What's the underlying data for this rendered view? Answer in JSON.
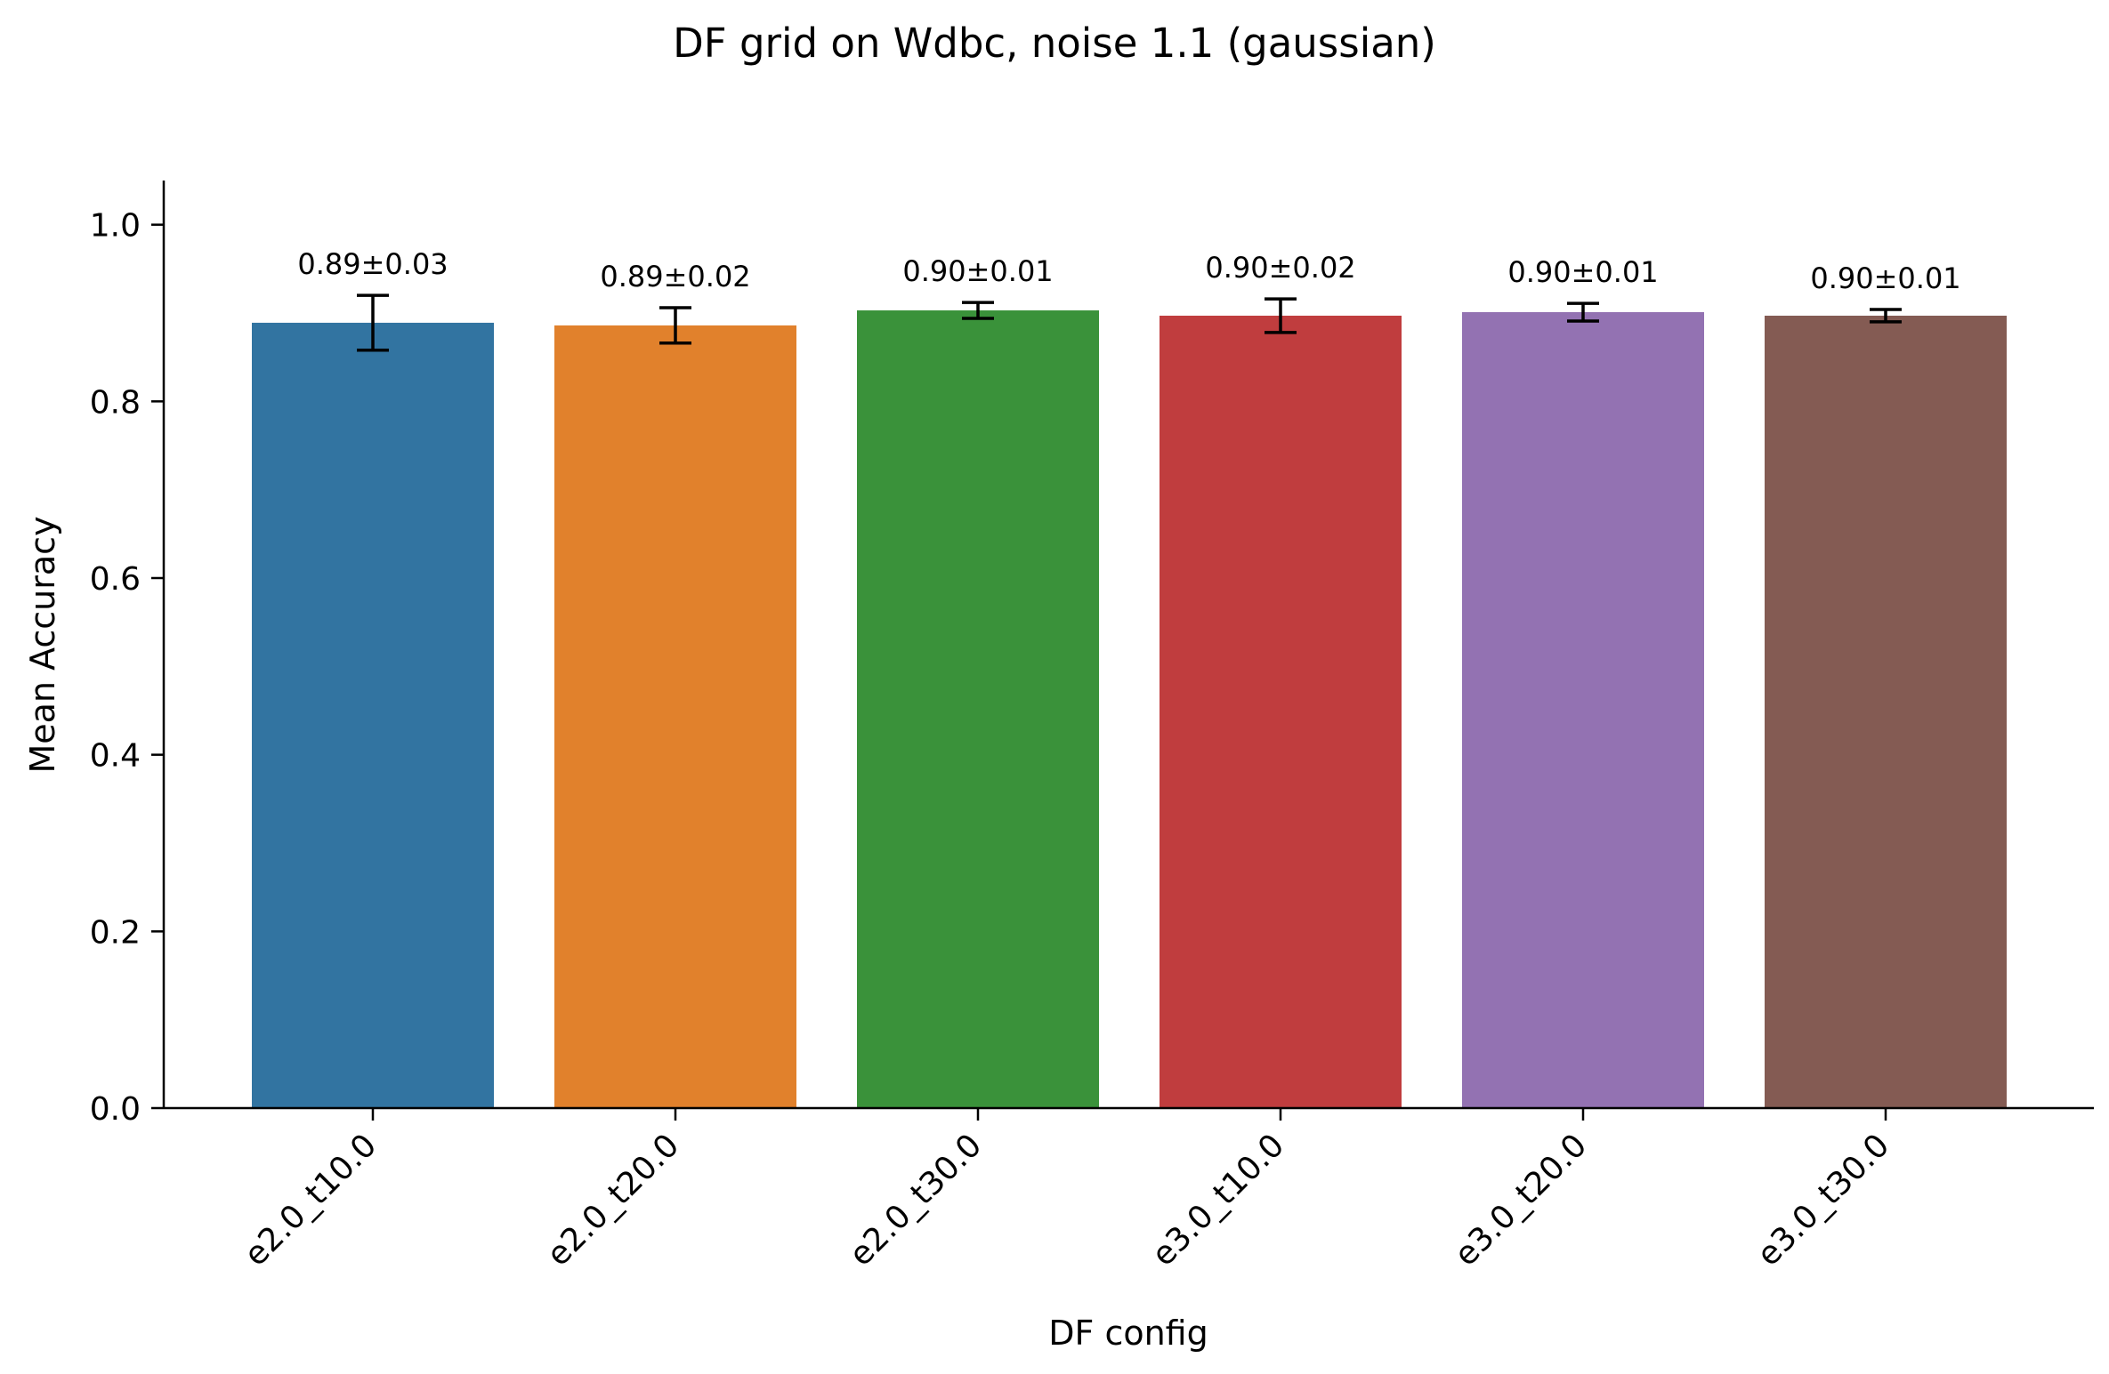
{
  "chart_data": {
    "type": "bar",
    "title": "DF grid on Wdbc, noise 1.1 (gaussian)",
    "xlabel": "DF config",
    "ylabel": "Mean Accuracy",
    "ylim": [
      0,
      1.05
    ],
    "yticks": [
      0.0,
      0.2,
      0.4,
      0.6,
      0.8,
      1.0
    ],
    "ytick_labels": [
      "0.0",
      "0.2",
      "0.4",
      "0.6",
      "0.8",
      "1.0"
    ],
    "grid": false,
    "categories": [
      "e2.0_t10.0",
      "e2.0_t20.0",
      "e2.0_t30.0",
      "e3.0_t10.0",
      "e3.0_t20.0",
      "e3.0_t30.0"
    ],
    "values": [
      0.889,
      0.886,
      0.903,
      0.897,
      0.901,
      0.897
    ],
    "errors": [
      0.031,
      0.02,
      0.009,
      0.019,
      0.01,
      0.007
    ],
    "data_labels": [
      "0.89±0.03",
      "0.89±0.02",
      "0.90±0.01",
      "0.90±0.02",
      "0.90±0.01",
      "0.90±0.01"
    ],
    "colors": [
      "#3274a1",
      "#e1812c",
      "#3a923a",
      "#c03d3e",
      "#9372b2",
      "#845b53"
    ],
    "error_color": "#000000",
    "axis_color": "#000000"
  }
}
